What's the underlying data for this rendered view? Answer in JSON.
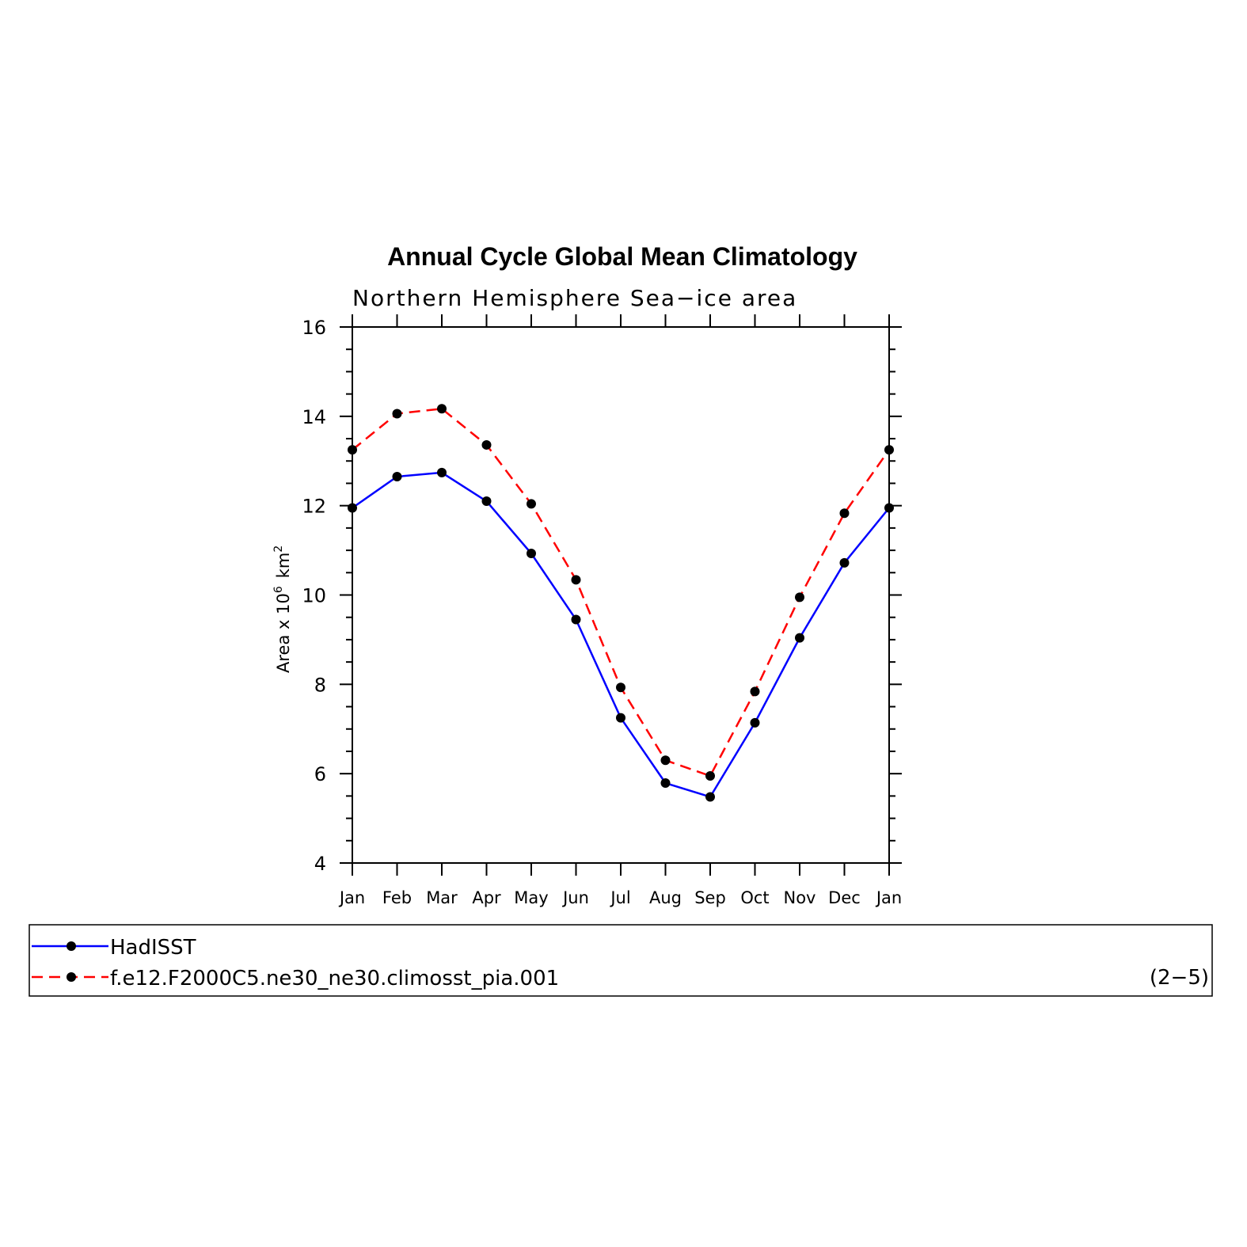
{
  "chart_data": {
    "type": "line",
    "title": "Annual Cycle Global Mean Climatology",
    "subtitle": "Northern Hemisphere Sea−ice area",
    "ylabel": "Area x 10",
    "ylabel_exp": "6",
    "ylabel_unit": "km",
    "ylabel_unit_exp": "2",
    "ylim": [
      4,
      16
    ],
    "yticks": [
      "4",
      "6",
      "8",
      "10",
      "12",
      "14",
      "16"
    ],
    "categories": [
      "Jan",
      "Feb",
      "Mar",
      "Apr",
      "May",
      "Jun",
      "Jul",
      "Aug",
      "Sep",
      "Oct",
      "Nov",
      "Dec",
      "Jan"
    ],
    "series": [
      {
        "name": "HadISST",
        "color": "#0000ff",
        "dash": "solid",
        "values": [
          11.95,
          12.65,
          12.74,
          12.1,
          10.93,
          9.45,
          7.25,
          5.79,
          5.48,
          7.14,
          9.04,
          10.72,
          11.95
        ]
      },
      {
        "name": "f.e12.F2000C5.ne30_ne30.climosst_pia.001",
        "color": "#ff0000",
        "dash": "dashed",
        "values": [
          13.25,
          14.06,
          14.17,
          13.36,
          12.04,
          10.34,
          7.93,
          6.3,
          5.95,
          7.84,
          9.95,
          11.83,
          13.25
        ]
      }
    ],
    "marker_color": "#000000",
    "legend_placement": "bottom",
    "panel_label": "(2−5)",
    "grid": false
  }
}
